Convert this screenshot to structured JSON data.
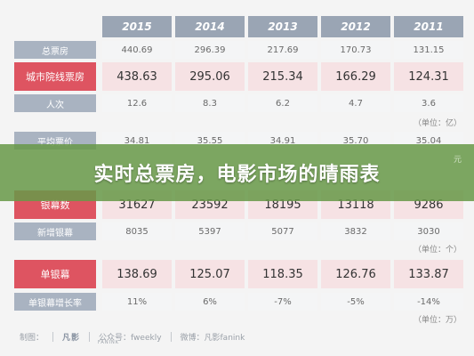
{
  "years": [
    "2015",
    "2014",
    "2013",
    "2012",
    "2011"
  ],
  "rows": [
    {
      "label": "总票房",
      "values": [
        "440.69",
        "296.39",
        "217.69",
        "170.73",
        "131.15"
      ]
    },
    {
      "label": "城市院线票房",
      "values": [
        "438.63",
        "295.06",
        "215.34",
        "166.29",
        "124.31"
      ]
    },
    {
      "label": "人次",
      "values": [
        "12.6",
        "8.3",
        "6.2",
        "4.7",
        "3.6"
      ]
    },
    {
      "label": "平均票价",
      "values": [
        "34.81",
        "35.55",
        "34.91",
        "35.70",
        "35.04"
      ]
    },
    {
      "label": "银幕数",
      "values": [
        "31627",
        "23592",
        "18195",
        "13118",
        "9286"
      ]
    },
    {
      "label": "新增银幕",
      "values": [
        "8035",
        "5397",
        "5077",
        "3832",
        "3030"
      ]
    },
    {
      "label": "单银幕",
      "values": [
        "138.69",
        "125.07",
        "118.35",
        "126.76",
        "133.87"
      ]
    },
    {
      "label": "单银幕增长率",
      "values": [
        "11%",
        "6%",
        "-7%",
        "-5%",
        "-14%"
      ]
    }
  ],
  "units": {
    "box_office": "（单位：亿）",
    "avg_price": "元",
    "screens": "（单位：个）",
    "growth": "（单位：万）"
  },
  "banner": "实时总票房，电影市场的晴雨表",
  "footer": {
    "made_by": "制图：",
    "logo": "凡影",
    "brand": "FANINK",
    "public_account": "公众号：fweekly",
    "weibo": "微博：凡影fanink"
  },
  "colors": {
    "header_bg": "#9aa5b4",
    "label_bg": "#a9b3c1",
    "highlight_label": "#de5461",
    "highlight_cell": "#f6e2e4",
    "banner_bg": "#689948"
  }
}
